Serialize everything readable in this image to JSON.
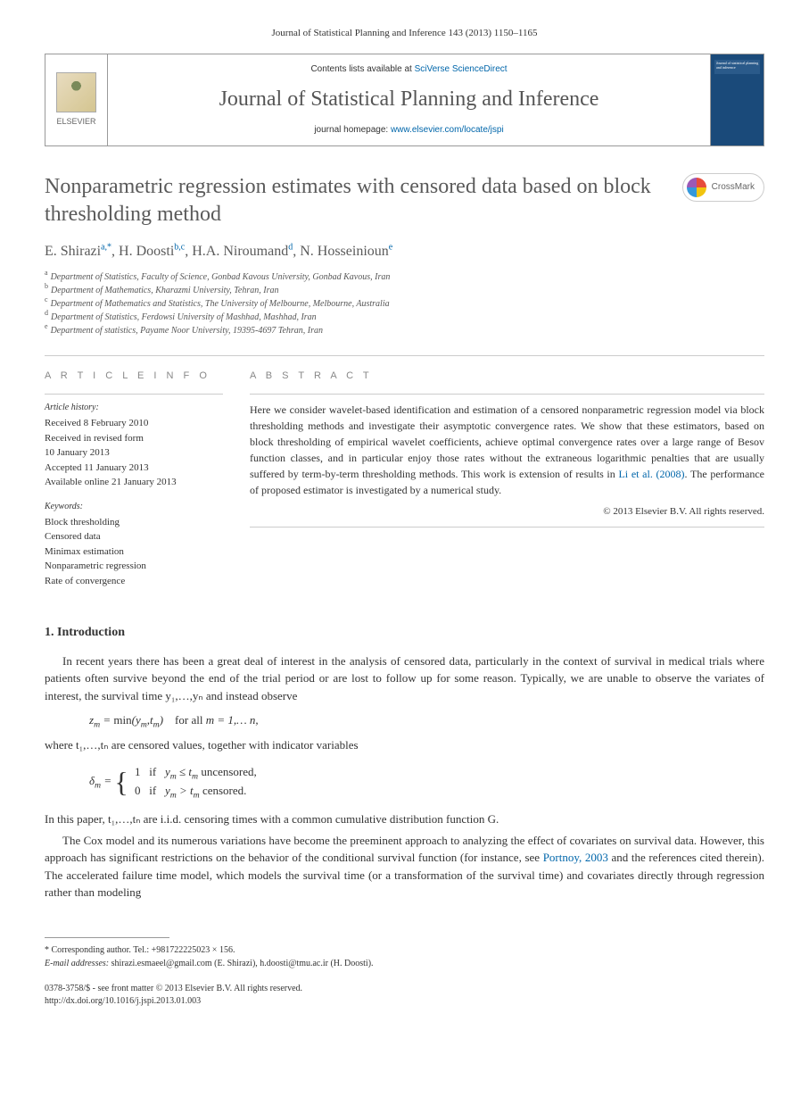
{
  "journal_ref": "Journal of Statistical Planning and Inference 143 (2013) 1150–1165",
  "header": {
    "elsevier_label": "ELSEVIER",
    "contents_prefix": "Contents lists available at ",
    "contents_link": "SciVerse ScienceDirect",
    "journal_title": "Journal of Statistical Planning and Inference",
    "homepage_prefix": "journal homepage: ",
    "homepage_link": "www.elsevier.com/locate/jspi",
    "cover_text": "Journal of statistical planning and inference"
  },
  "article": {
    "title": "Nonparametric regression estimates with censored data based on block thresholding method",
    "crossmark_label": "CrossMark",
    "authors_html": "E. Shirazi",
    "authors": [
      {
        "name": "E. Shirazi",
        "sup": "a,*"
      },
      {
        "name": "H. Doosti",
        "sup": "b,c"
      },
      {
        "name": "H.A. Niroumand",
        "sup": "d"
      },
      {
        "name": "N. Hosseinioun",
        "sup": "e"
      }
    ],
    "affiliations": [
      {
        "sup": "a",
        "text": "Department of Statistics, Faculty of Science, Gonbad Kavous University, Gonbad Kavous, Iran"
      },
      {
        "sup": "b",
        "text": "Department of Mathematics, Kharazmi University, Tehran, Iran"
      },
      {
        "sup": "c",
        "text": "Department of Mathematics and Statistics, The University of Melbourne, Melbourne, Australia"
      },
      {
        "sup": "d",
        "text": "Department of Statistics, Ferdowsi University of Mashhad, Mashhad, Iran"
      },
      {
        "sup": "e",
        "text": "Department of statistics, Payame Noor University, 19395-4697 Tehran, Iran"
      }
    ]
  },
  "info": {
    "head": "A R T I C L E  I N F O",
    "history_label": "Article history:",
    "history": [
      "Received 8 February 2010",
      "Received in revised form",
      "10 January 2013",
      "Accepted 11 January 2013",
      "Available online 21 January 2013"
    ],
    "keywords_label": "Keywords:",
    "keywords": [
      "Block thresholding",
      "Censored data",
      "Minimax estimation",
      "Nonparametric regression",
      "Rate of convergence"
    ]
  },
  "abstract": {
    "head": "A B S T R A C T",
    "text_before_cite": "Here we consider wavelet-based identification and estimation of a censored nonparametric regression model via block thresholding methods and investigate their asymptotic convergence rates. We show that these estimators, based on block thresholding of empirical wavelet coefficients, achieve optimal convergence rates over a large range of Besov function classes, and in particular enjoy those rates without the extraneous logarithmic penalties that are usually suffered by term-by-term thresholding methods. This work is extension of results in ",
    "cite": "Li et al. (2008)",
    "text_after_cite": ". The performance of proposed estimator is investigated by a numerical study.",
    "copyright": "© 2013 Elsevier B.V. All rights reserved."
  },
  "section1": {
    "head": "1.  Introduction",
    "para1": "In recent years there has been a great deal of interest in the analysis of censored data, particularly in the context of survival in medical trials where patients often survive beyond the end of the trial period or are lost to follow up for some reason. Typically, we are unable to observe the variates of interest, the survival time y₁,…,yₙ and instead observe",
    "formula1": "zₘ = min(yₘ,tₘ)    for all m = 1,… n,",
    "para2": "where t₁,…,tₙ are censored values, together with indicator variables",
    "formula2_line1": "1   if  yₘ ≤ tₘ uncensored,",
    "formula2_line2": "0   if  yₘ > tₘ censored.",
    "para3": "In this paper, t₁,…,tₙ are i.i.d. censoring times with a common cumulative distribution function G.",
    "para4_before": "The Cox model and its numerous variations have become the preeminent approach to analyzing the effect of covariates on survival data. However, this approach has significant restrictions on the behavior of the conditional survival function (for instance, see ",
    "para4_cite": "Portnoy, 2003",
    "para4_after": " and the references cited therein). The accelerated failure time model, which models the survival time (or a transformation of the survival time) and covariates directly through regression rather than modeling"
  },
  "footnotes": {
    "corr": "* Corresponding author. Tel.: +981722225023 × 156.",
    "email_label": "E-mail addresses:",
    "emails": " shirazi.esmaeel@gmail.com (E. Shirazi), h.doosti@tmu.ac.ir (H. Doosti)."
  },
  "bottom": {
    "line1": "0378-3758/$ - see front matter © 2013 Elsevier B.V. All rights reserved.",
    "line2": "http://dx.doi.org/10.1016/j.jspi.2013.01.003"
  }
}
